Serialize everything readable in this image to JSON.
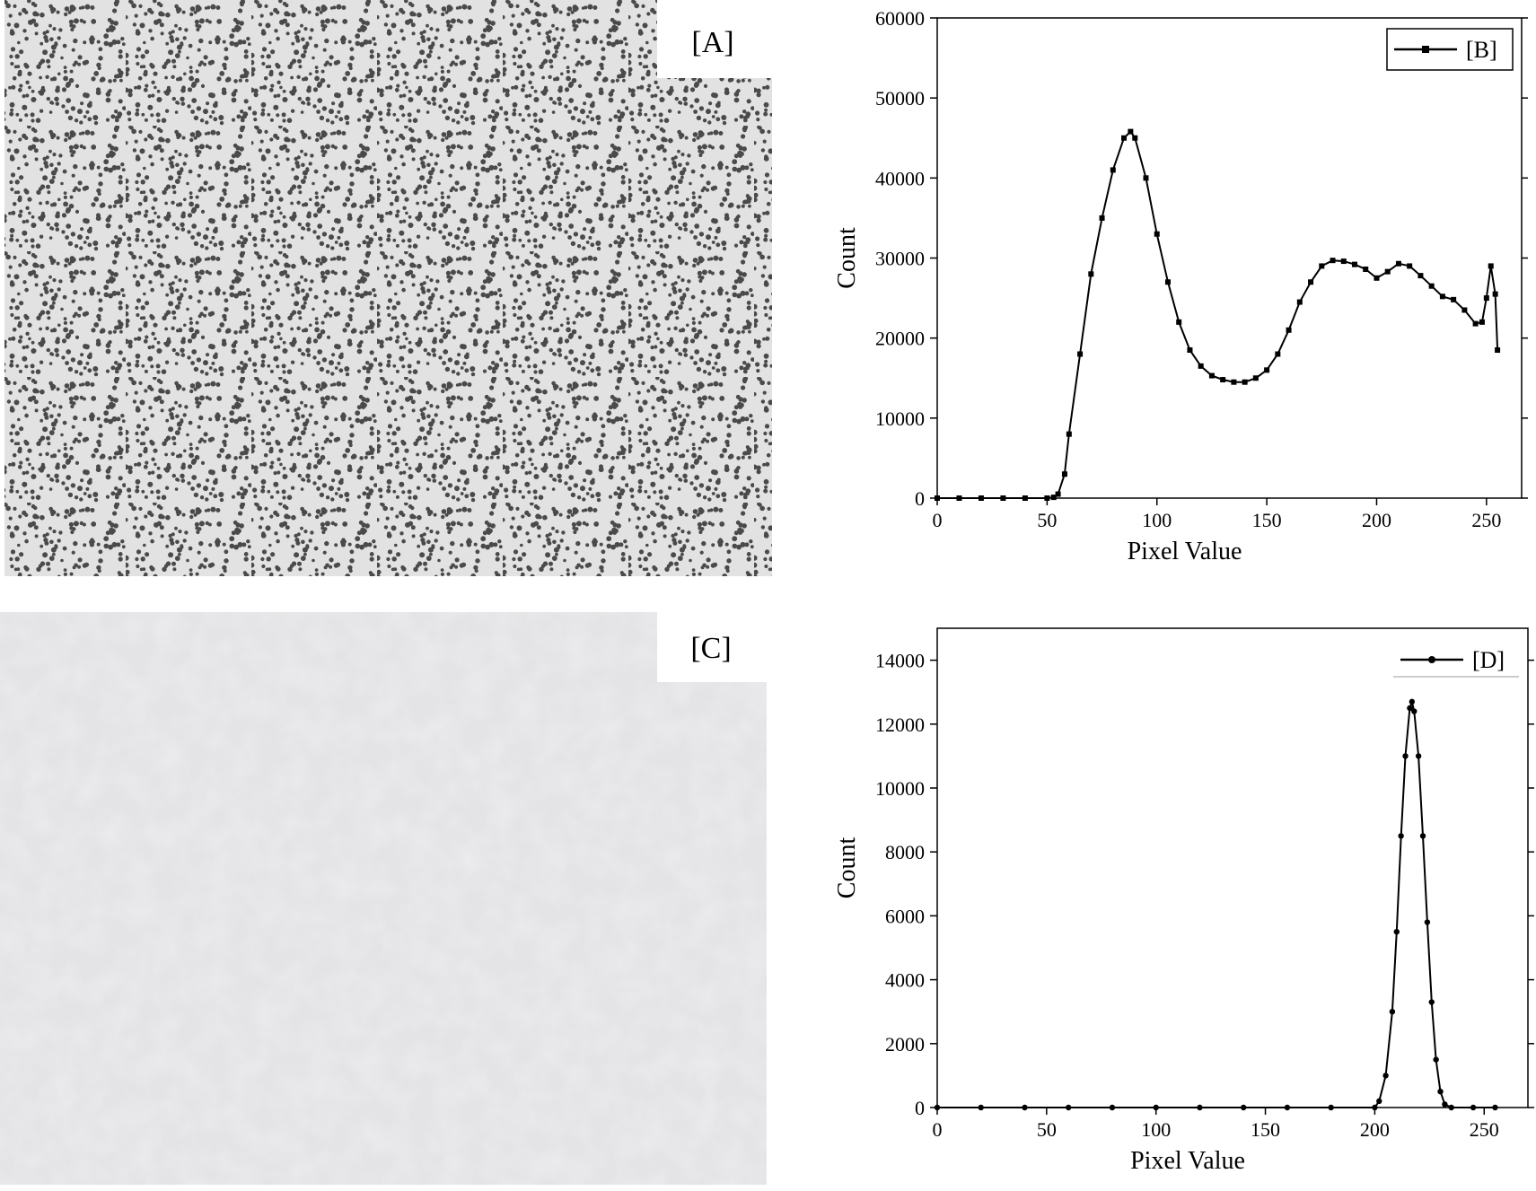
{
  "images": [
    {
      "label": "[A]"
    },
    {
      "label": "[C]"
    }
  ],
  "chart_data": [
    {
      "type": "line",
      "xlabel": "Pixel Value",
      "ylabel": "Count",
      "x": [
        0,
        10,
        20,
        30,
        40,
        50,
        53,
        55,
        58,
        60,
        65,
        70,
        75,
        80,
        85,
        88,
        90,
        95,
        100,
        105,
        110,
        115,
        120,
        125,
        130,
        135,
        140,
        145,
        150,
        155,
        160,
        165,
        170,
        175,
        180,
        185,
        190,
        195,
        200,
        205,
        210,
        215,
        220,
        225,
        230,
        235,
        240,
        245,
        248,
        250,
        252,
        254,
        255
      ],
      "series": [
        {
          "name": "[B]",
          "color": "#000000",
          "marker": "square",
          "values": [
            0,
            0,
            0,
            0,
            0,
            0,
            100,
            500,
            3000,
            8000,
            18000,
            28000,
            35000,
            41000,
            45000,
            45800,
            45000,
            40000,
            33000,
            27000,
            22000,
            18500,
            16500,
            15300,
            14800,
            14500,
            14500,
            15000,
            16000,
            18000,
            21000,
            24500,
            27000,
            29000,
            29700,
            29600,
            29200,
            28600,
            27500,
            28300,
            29300,
            29000,
            27800,
            26500,
            25200,
            24800,
            23500,
            21800,
            22000,
            25000,
            29000,
            25500,
            18500
          ]
        }
      ],
      "xlim": [
        0,
        266
      ],
      "ylim": [
        0,
        60000
      ],
      "xticks": [
        0,
        50,
        100,
        150,
        200,
        250
      ],
      "yticks": [
        0,
        10000,
        20000,
        30000,
        40000,
        50000,
        60000
      ],
      "legend": "upper right",
      "legend_frame": true
    },
    {
      "type": "line",
      "xlabel": "Pixel Value",
      "ylabel": "Count",
      "x": [
        0,
        20,
        40,
        60,
        80,
        100,
        120,
        140,
        160,
        180,
        200,
        202,
        205,
        208,
        210,
        212,
        214,
        216,
        217,
        218,
        220,
        222,
        224,
        226,
        228,
        230,
        232,
        235,
        245,
        255
      ],
      "series": [
        {
          "name": "[D]",
          "color": "#000000",
          "marker": "circle",
          "values": [
            0,
            0,
            0,
            0,
            0,
            0,
            0,
            0,
            0,
            0,
            0,
            200,
            1000,
            3000,
            5500,
            8500,
            11000,
            12500,
            12700,
            12400,
            11000,
            8500,
            5800,
            3300,
            1500,
            500,
            100,
            0,
            0,
            0
          ]
        }
      ],
      "xlim": [
        0,
        270
      ],
      "ylim": [
        0,
        15000
      ],
      "xticks": [
        0,
        50,
        100,
        150,
        200,
        250
      ],
      "yticks": [
        0,
        2000,
        4000,
        6000,
        8000,
        10000,
        12000,
        14000
      ],
      "legend": "upper right",
      "legend_frame": false
    }
  ]
}
